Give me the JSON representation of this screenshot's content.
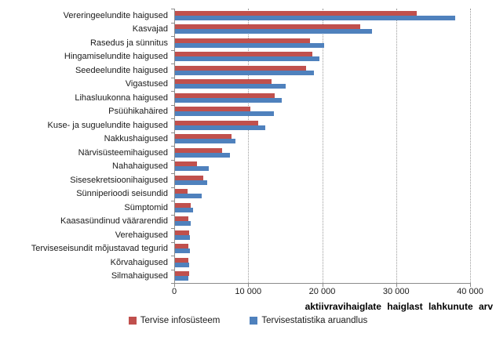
{
  "chart_data": {
    "type": "bar",
    "orientation": "horizontal",
    "title": "",
    "xlabel": "aktiivravihaiglate haiglast lahkunute arv",
    "ylabel": "",
    "xlim": [
      0,
      40000
    ],
    "grid": "vertical-dotted",
    "legend_position": "bottom-center",
    "categories": [
      "Vereringeelundite haigused",
      "Kasvajad",
      "Rasedus ja sünnitus",
      "Hingamiselundite haigused",
      "Seedeelundite haigused",
      "Vigastused",
      "Lihasluukonna haigused",
      "Psüühikahäired",
      "Kuse- ja suguelundite haigused",
      "Nakkushaigused",
      "Närvisüsteemihaigused",
      "Nahahaigused",
      "Sisesekretsioonihaigused",
      "Sünniperioodi seisundid",
      "Sümptomid",
      "Kaasasündinud väärarendid",
      "Verehaigused",
      "Terviseseisundit mõjustavad tegurid",
      "Kõrvahaigused",
      "Silmahaigused"
    ],
    "series": [
      {
        "name": "Tervise infosüsteem",
        "color": "#C0504D",
        "values": [
          32700,
          25000,
          18300,
          18600,
          17700,
          13000,
          13500,
          10200,
          11250,
          7650,
          6400,
          3000,
          3850,
          1700,
          2150,
          1800,
          1900,
          1850,
          1800,
          1900
        ]
      },
      {
        "name": "Tervisestatistika aruandlus",
        "color": "#4F81BD",
        "values": [
          37900,
          26600,
          20200,
          19500,
          18800,
          15000,
          14400,
          13400,
          12200,
          8200,
          7450,
          4600,
          4350,
          3600,
          2400,
          2100,
          2000,
          2050,
          1950,
          1850
        ]
      }
    ],
    "xticks": [
      {
        "value": 0,
        "label": "0"
      },
      {
        "value": 10000,
        "label": "10 000"
      },
      {
        "value": 20000,
        "label": "20 000"
      },
      {
        "value": 30000,
        "label": "30 000"
      },
      {
        "value": 40000,
        "label": "40 000"
      }
    ]
  },
  "colors": {
    "series_red": "#C0504D",
    "series_blue": "#4F81BD",
    "axis": "#8c8c8c",
    "gridline": "#9b9b9b",
    "text": "#1a1a1a"
  }
}
